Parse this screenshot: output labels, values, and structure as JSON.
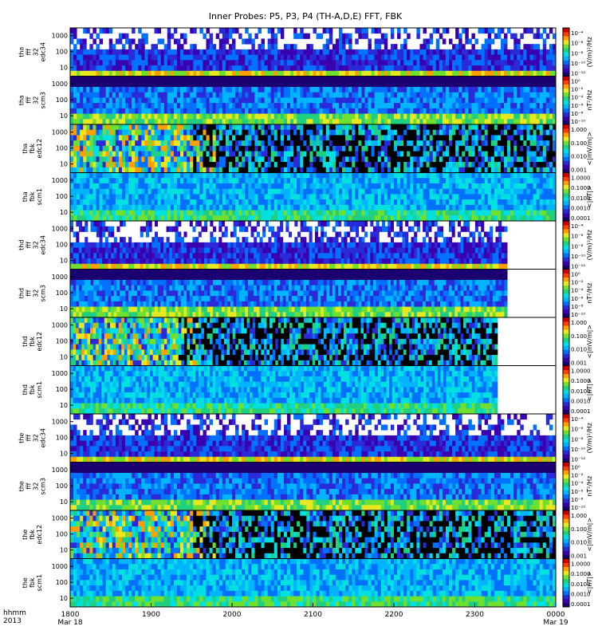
{
  "chart_data": {
    "type": "heatmap",
    "title": "Inner Probes: P5, P3, P4 (TH-A,D,E) FFT, FBK",
    "time_axis": {
      "label_line1": "hhmm",
      "label_line2": "2013",
      "ticks": [
        {
          "label": "1800",
          "sub": "Mar 18"
        },
        {
          "label": "1900",
          "sub": ""
        },
        {
          "label": "2000",
          "sub": ""
        },
        {
          "label": "2100",
          "sub": ""
        },
        {
          "label": "2200",
          "sub": ""
        },
        {
          "label": "2300",
          "sub": ""
        },
        {
          "label": "0000",
          "sub": "Mar 19"
        }
      ]
    },
    "frequency_ticks": [
      "1000",
      "100",
      "10"
    ],
    "panels": [
      {
        "probe": "tha",
        "label": [
          "tha",
          "fff",
          "32",
          "edc34"
        ],
        "cbar_title": "(V/m)²/Hz",
        "cbar_ticks": [
          "10⁻⁴",
          "10⁻⁶",
          "10⁻⁸",
          "10⁻¹⁰",
          "10⁻¹²"
        ],
        "end_fraction": 1.0,
        "style": "fff_e"
      },
      {
        "probe": "tha",
        "label": [
          "tha",
          "fff",
          "32",
          "scm3"
        ],
        "cbar_title": "nT²/Hz",
        "cbar_ticks": [
          "10⁰",
          "10⁻²",
          "10⁻⁴",
          "10⁻⁶",
          "10⁻⁸",
          "10⁻¹⁰"
        ],
        "end_fraction": 1.0,
        "style": "fff_b"
      },
      {
        "probe": "tha",
        "label": [
          "tha",
          "fbk",
          "edc12"
        ],
        "cbar_title": "<|mV/m|>",
        "cbar_ticks": [
          "1.000",
          "0.100",
          "0.010",
          "0.001"
        ],
        "end_fraction": 1.0,
        "style": "fbk_e"
      },
      {
        "probe": "tha",
        "label": [
          "tha",
          "fbk",
          "scm1"
        ],
        "cbar_title": "<|nT|>",
        "cbar_ticks": [
          "1.0000",
          "0.1000",
          "0.0100",
          "0.0010",
          "0.0001"
        ],
        "end_fraction": 1.0,
        "style": "fbk_b"
      },
      {
        "probe": "thd",
        "label": [
          "thd",
          "fff",
          "32",
          "edc34"
        ],
        "cbar_title": "(V/m)²/Hz",
        "cbar_ticks": [
          "10⁻⁴",
          "10⁻⁶",
          "10⁻⁸",
          "10⁻¹⁰",
          "10⁻¹²"
        ],
        "end_fraction": 0.9,
        "style": "fff_e"
      },
      {
        "probe": "thd",
        "label": [
          "thd",
          "fff",
          "32",
          "scm3"
        ],
        "cbar_title": "nT²/Hz",
        "cbar_ticks": [
          "10⁰",
          "10⁻²",
          "10⁻⁴",
          "10⁻⁶",
          "10⁻⁸",
          "10⁻¹⁰"
        ],
        "end_fraction": 0.9,
        "style": "fff_b"
      },
      {
        "probe": "thd",
        "label": [
          "thd",
          "fbk",
          "edc12"
        ],
        "cbar_title": "<|mV/m|>",
        "cbar_ticks": [
          "1.000",
          "0.100",
          "0.010",
          "0.001"
        ],
        "end_fraction": 0.88,
        "style": "fbk_e"
      },
      {
        "probe": "thd",
        "label": [
          "thd",
          "fbk",
          "scm1"
        ],
        "cbar_title": "<|nT|>",
        "cbar_ticks": [
          "1.0000",
          "0.1000",
          "0.0100",
          "0.0010",
          "0.0001"
        ],
        "end_fraction": 0.88,
        "style": "fbk_b"
      },
      {
        "probe": "the",
        "label": [
          "the",
          "fff",
          "32",
          "edc34"
        ],
        "cbar_title": "(V/m)²/Hz",
        "cbar_ticks": [
          "10⁻⁴",
          "10⁻⁶",
          "10⁻⁸",
          "10⁻¹⁰",
          "10⁻¹²"
        ],
        "end_fraction": 1.0,
        "style": "fff_e"
      },
      {
        "probe": "the",
        "label": [
          "the",
          "fff",
          "32",
          "scm3"
        ],
        "cbar_title": "nT²/Hz",
        "cbar_ticks": [
          "10⁰",
          "10⁻²",
          "10⁻⁴",
          "10⁻⁶",
          "10⁻⁸",
          "10⁻¹⁰"
        ],
        "end_fraction": 1.0,
        "style": "fff_b"
      },
      {
        "probe": "the",
        "label": [
          "the",
          "fbk",
          "edc12"
        ],
        "cbar_title": "<|mV/m|>",
        "cbar_ticks": [
          "1.000",
          "0.100",
          "0.010",
          "0.001"
        ],
        "end_fraction": 1.0,
        "style": "fbk_e"
      },
      {
        "probe": "the",
        "label": [
          "the",
          "fbk",
          "scm1"
        ],
        "cbar_title": "<|nT|>",
        "cbar_ticks": [
          "1.0000",
          "0.1000",
          "0.0100",
          "0.0010",
          "0.0001"
        ],
        "end_fraction": 1.0,
        "style": "fbk_b"
      }
    ],
    "colormap": [
      "#1a0070",
      "#3a00b0",
      "#2a2ad8",
      "#0070ff",
      "#00b4ff",
      "#00e0e0",
      "#20d080",
      "#70e030",
      "#e8e820",
      "#ffa000",
      "#ff4000",
      "#d00000"
    ]
  }
}
